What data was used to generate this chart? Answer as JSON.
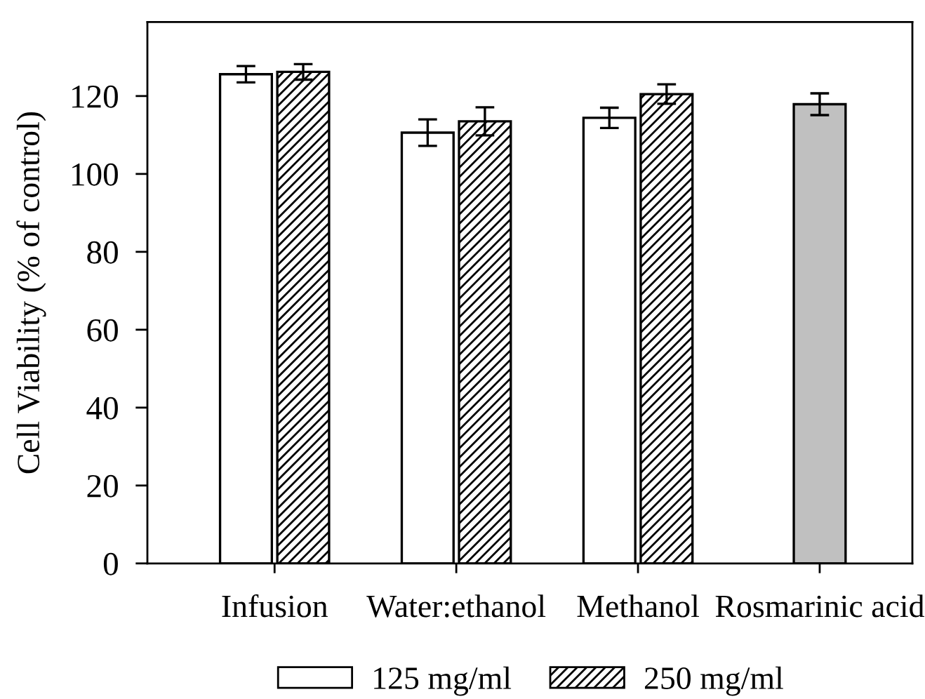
{
  "chart_data": {
    "type": "bar",
    "ylabel": "Cell Viability (% of control)",
    "categories": [
      "Infusion",
      "Water:ethanol",
      "Methanol",
      "Rosmarinic acid"
    ],
    "series": [
      {
        "name": "125 mg/ml",
        "color": "#ffffff",
        "values": [
          125.6,
          110.6,
          114.4,
          null
        ],
        "errors": [
          2.1,
          3.4,
          2.6,
          null
        ]
      },
      {
        "name": "250 mg/ml",
        "color": "#000000",
        "values": [
          126.2,
          113.5,
          120.5,
          null
        ],
        "errors": [
          2.0,
          3.6,
          2.5,
          null
        ]
      },
      {
        "color": "#c0c0c0",
        "values": [
          null,
          null,
          null,
          117.9
        ],
        "errors": [
          null,
          null,
          null,
          2.8
        ]
      }
    ],
    "ylim": [
      0,
      139
    ],
    "yticks": [
      0,
      20,
      40,
      60,
      80,
      100,
      120
    ],
    "legend": "bottom"
  }
}
